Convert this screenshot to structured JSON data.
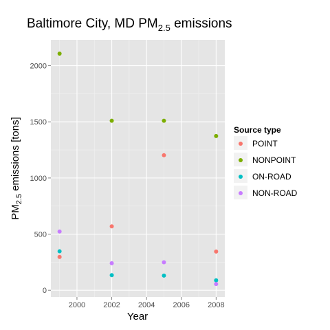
{
  "chart_data": {
    "type": "scatter",
    "title": {
      "main": "Baltimore City, MD PM",
      "sub": "2.5",
      "rest": " emissions"
    },
    "xlabel": "Year",
    "ylabel": {
      "main": "PM",
      "sub": "2.5",
      "rest": " emissions [tons]"
    },
    "xlim": [
      1998.5,
      2008.5
    ],
    "ylim": [
      -60,
      2230
    ],
    "x_ticks": [
      2000,
      2002,
      2004,
      2006,
      2008
    ],
    "y_ticks": [
      0,
      500,
      1000,
      1500,
      2000
    ],
    "x_tick_labels": [
      "2000",
      "2002",
      "2004",
      "2006",
      "2008"
    ],
    "y_tick_labels": [
      "0",
      "500",
      "1000",
      "1500",
      "2000"
    ],
    "grid": true,
    "legend": {
      "title": "Source type",
      "placement": "right"
    },
    "series": [
      {
        "name": "POINT",
        "color": "#F8766D",
        "x": [
          1999,
          2002,
          2005,
          2008
        ],
        "y": [
          296.8,
          569.3,
          1202.5,
          345.0
        ]
      },
      {
        "name": "NONPOINT",
        "color": "#7CAE00",
        "x": [
          1999,
          2002,
          2005,
          2008
        ],
        "y": [
          2107.6,
          1509.5,
          1509.5,
          1373.2
        ]
      },
      {
        "name": "ON-ROAD",
        "color": "#00BFC4",
        "x": [
          1999,
          2002,
          2005,
          2008
        ],
        "y": [
          346.8,
          134.3,
          130.4,
          88.3
        ]
      },
      {
        "name": "NON-ROAD",
        "color": "#C77CFF",
        "x": [
          1999,
          2002,
          2005,
          2008
        ],
        "y": [
          522.9,
          240.8,
          248.9,
          55.8
        ]
      }
    ]
  }
}
